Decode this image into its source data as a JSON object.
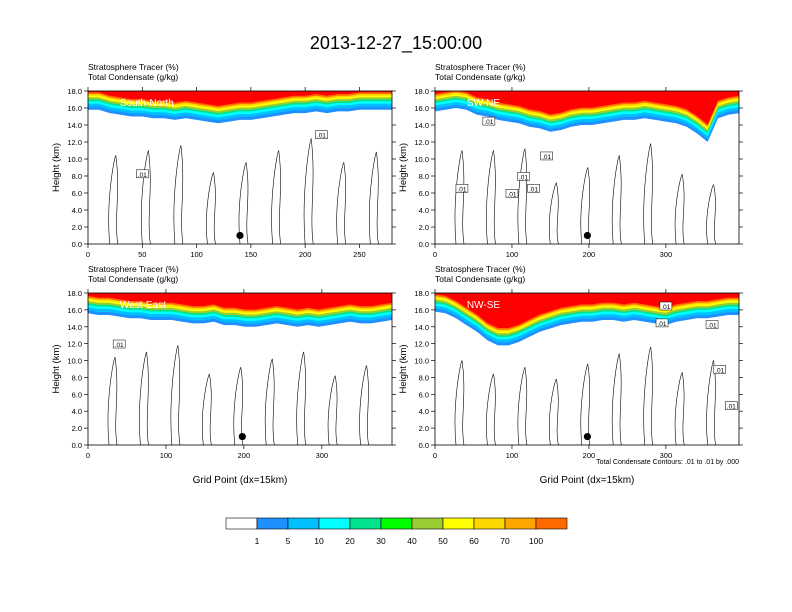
{
  "title": "2013-12-27_15:00:00",
  "panel_text": {
    "line1": "Stratosphere Tracer   (%)",
    "line2": "Total Condensate   (g/kg)"
  },
  "y_axis_label": "Height (km)",
  "x_axis_label": "Grid Point (dx=15km)",
  "contour_note": "Total Condensate Contours: .01 to .01 by .000",
  "contour_label": ".01",
  "colors": {
    "levels": [
      "#ffffff",
      "#1e90ff",
      "#00bfff",
      "#00ffff",
      "#00e38c",
      "#00ff00",
      "#9acd32",
      "#ffff00",
      "#ffd700",
      "#ffa500",
      "#ff6a00",
      "#ff0000"
    ],
    "boundaries": [
      "1",
      "5",
      "10",
      "20",
      "30",
      "40",
      "50",
      "60",
      "70",
      "100"
    ]
  },
  "chart_data": [
    {
      "type": "heatmap",
      "section": "South-North",
      "xlim": [
        0,
        280
      ],
      "ylim": [
        0,
        18
      ],
      "x_ticks": [
        0,
        50,
        100,
        150,
        200,
        250
      ],
      "y_ticks": [
        "0.0",
        "2.0",
        "4.0",
        "6.0",
        "8.0",
        "10.0",
        "12.0",
        "14.0",
        "16.0",
        "18.0"
      ],
      "tracer_base_km": [
        15.8,
        15.8,
        15.4,
        15.2,
        15.0,
        15.0,
        14.8,
        14.8,
        14.6,
        14.8,
        14.6,
        14.4,
        14.2,
        14.4,
        14.6,
        14.6,
        14.8,
        15.0,
        15.2,
        15.4,
        15.4,
        15.6,
        15.4,
        15.6,
        15.6,
        15.8,
        15.8,
        15.8,
        15.8
      ],
      "contour_labels_at": [
        [
          50,
          8.2
        ],
        [
          215,
          12.8
        ]
      ],
      "marker": {
        "x": 140,
        "y": 1.0
      }
    },
    {
      "type": "heatmap",
      "section": "SW-NE",
      "xlim": [
        0,
        395
      ],
      "ylim": [
        0,
        18
      ],
      "x_ticks": [
        0,
        100,
        200,
        300
      ],
      "y_ticks": [
        "0.0",
        "2.0",
        "4.0",
        "6.0",
        "8.0",
        "10.0",
        "12.0",
        "14.0",
        "16.0",
        "18.0"
      ],
      "tracer_base_km": [
        15.6,
        15.8,
        16.0,
        15.8,
        15.2,
        15.0,
        14.6,
        14.4,
        14.2,
        13.8,
        13.6,
        13.2,
        13.4,
        13.8,
        14.0,
        14.0,
        14.2,
        14.4,
        14.6,
        14.6,
        14.8,
        14.6,
        14.4,
        14.2,
        13.8,
        13.0,
        12.0,
        14.8,
        15.2,
        15.4
      ],
      "contour_labels_at": [
        [
          35,
          6.5
        ],
        [
          70,
          14.4
        ],
        [
          100,
          5.9
        ],
        [
          115,
          7.9
        ],
        [
          128,
          6.5
        ],
        [
          145,
          10.3
        ]
      ],
      "marker": {
        "x": 198,
        "y": 1.0
      }
    },
    {
      "type": "heatmap",
      "section": "West-East",
      "xlim": [
        0,
        390
      ],
      "ylim": [
        0,
        18
      ],
      "x_ticks": [
        0,
        100,
        200,
        300
      ],
      "y_ticks": [
        "0.0",
        "2.0",
        "4.0",
        "6.0",
        "8.0",
        "10.0",
        "12.0",
        "14.0",
        "16.0",
        "18.0"
      ],
      "tracer_base_km": [
        15.6,
        15.4,
        15.4,
        15.2,
        15.0,
        15.0,
        14.8,
        14.8,
        14.8,
        14.6,
        14.4,
        14.4,
        14.6,
        14.2,
        14.2,
        14.0,
        14.0,
        14.2,
        14.4,
        14.2,
        14.0,
        14.2,
        14.0,
        14.2,
        14.4,
        14.6,
        14.4,
        14.4,
        14.6,
        14.8
      ],
      "contour_labels_at": [
        [
          40,
          11.9
        ]
      ],
      "marker": {
        "x": 198,
        "y": 1.0
      }
    },
    {
      "type": "heatmap",
      "section": "NW-SE",
      "xlim": [
        0,
        395
      ],
      "ylim": [
        0,
        18
      ],
      "x_ticks": [
        0,
        100,
        200,
        300
      ],
      "y_ticks": [
        "0.0",
        "2.0",
        "4.0",
        "6.0",
        "8.0",
        "10.0",
        "12.0",
        "14.0",
        "16.0",
        "18.0"
      ],
      "tracer_base_km": [
        15.8,
        15.6,
        15.0,
        14.2,
        13.4,
        12.4,
        11.8,
        11.8,
        12.2,
        12.8,
        13.4,
        13.8,
        14.2,
        14.4,
        14.6,
        14.6,
        14.8,
        14.8,
        14.6,
        14.8,
        14.6,
        14.4,
        14.2,
        14.6,
        14.8,
        15.0,
        15.0,
        15.2,
        15.4,
        15.4
      ],
      "contour_labels_at": [
        [
          300,
          16.4
        ],
        [
          295,
          14.4
        ],
        [
          360,
          14.2
        ],
        [
          370,
          8.9
        ],
        [
          385,
          4.6
        ]
      ],
      "marker": {
        "x": 198,
        "y": 1.0
      }
    }
  ]
}
